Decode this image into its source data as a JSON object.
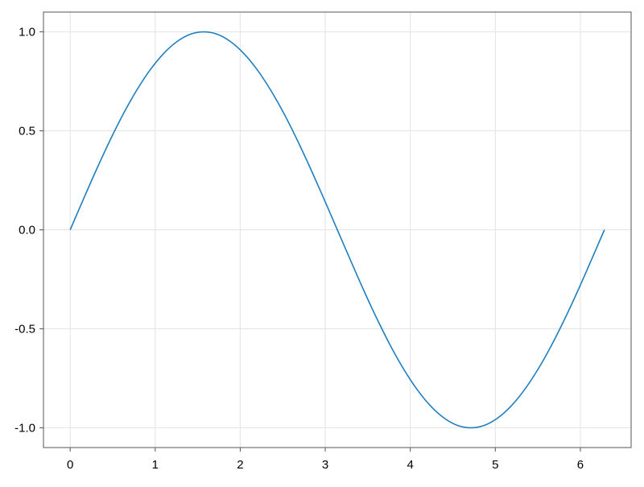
{
  "chart_data": {
    "type": "line",
    "title": "",
    "xlabel": "",
    "ylabel": "",
    "xlim": [
      -0.314,
      6.597
    ],
    "ylim": [
      -1.1,
      1.1
    ],
    "grid": true,
    "line_color": "#1f7ec0",
    "xticks": [
      0,
      1,
      2,
      3,
      4,
      5,
      6
    ],
    "xtick_labels": [
      "0",
      "1",
      "2",
      "3",
      "4",
      "5",
      "6"
    ],
    "yticks": [
      -1.0,
      -0.5,
      0.0,
      0.5,
      1.0
    ],
    "ytick_labels": [
      "-1.0",
      "-0.5",
      "0.0",
      "0.5",
      "1.0"
    ],
    "series": [
      {
        "x": [
          0,
          0.157,
          0.314,
          0.471,
          0.628,
          0.785,
          0.942,
          1.1,
          1.257,
          1.414,
          1.571,
          1.728,
          1.885,
          2.042,
          2.199,
          2.356,
          2.513,
          2.67,
          2.827,
          2.985,
          3.142,
          3.299,
          3.456,
          3.613,
          3.77,
          3.927,
          4.084,
          4.241,
          4.398,
          4.555,
          4.712,
          4.869,
          5.027,
          5.184,
          5.341,
          5.498,
          5.655,
          5.812,
          5.969,
          6.126,
          6.283
        ],
        "y": [
          0,
          0.156,
          0.309,
          0.454,
          0.588,
          0.707,
          0.809,
          0.891,
          0.951,
          0.988,
          1,
          0.988,
          0.951,
          0.891,
          0.809,
          0.707,
          0.588,
          0.454,
          0.309,
          0.156,
          0,
          -0.156,
          -0.309,
          -0.454,
          -0.588,
          -0.707,
          -0.809,
          -0.891,
          -0.951,
          -0.988,
          -1,
          -0.988,
          -0.951,
          -0.891,
          -0.809,
          -0.707,
          -0.588,
          -0.454,
          -0.309,
          -0.156,
          0
        ]
      }
    ]
  }
}
